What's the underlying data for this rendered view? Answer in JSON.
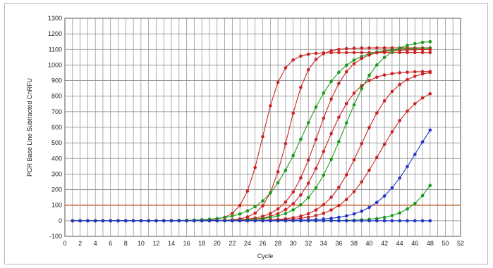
{
  "chart_data": {
    "type": "line",
    "title": "",
    "xlabel": "Cycle",
    "ylabel": "PCR Base Line Subtracted CnRFU",
    "xlim": [
      0,
      52
    ],
    "ylim": [
      -100,
      1300
    ],
    "x_ticks": [
      0,
      2,
      4,
      6,
      8,
      10,
      12,
      14,
      16,
      18,
      20,
      22,
      24,
      26,
      28,
      30,
      32,
      34,
      36,
      38,
      40,
      42,
      44,
      46,
      48,
      50,
      52
    ],
    "x_tick_labels": [
      "0",
      "2",
      "4",
      "6",
      "8",
      "10",
      "12",
      "14",
      "16",
      "18",
      "20",
      "22",
      "24",
      "26",
      "28",
      "30",
      "32",
      "34",
      "36",
      "38",
      "40",
      "42",
      "44",
      "46",
      "48",
      "50",
      "52"
    ],
    "y_ticks": [
      -100,
      0,
      100,
      200,
      300,
      400,
      500,
      600,
      700,
      800,
      900,
      1000,
      1100,
      1200,
      1300
    ],
    "y_tick_labels": [
      "-100",
      "0",
      "100",
      "200",
      "300",
      "400",
      "500",
      "600",
      "700",
      "800",
      "900",
      "1000",
      "1100",
      "1200",
      "1300"
    ],
    "grid": true,
    "legend": "none",
    "threshold": {
      "value": 100,
      "color": "#cc6b3a"
    },
    "cycles": {
      "start": 1,
      "end": 48
    },
    "series": [
      {
        "color": "#cc2222",
        "curve": {
          "plateau": 1080,
          "midpoint": 26.0,
          "slope": 1.3
        }
      },
      {
        "color": "#cc2222",
        "curve": {
          "plateau": 1110,
          "midpoint": 29.3,
          "slope": 1.4
        }
      },
      {
        "color": "#1a9a1a",
        "curve": {
          "plateau": 1110,
          "midpoint": 31.3,
          "slope": 2.6
        }
      },
      {
        "color": "#cc2222",
        "curve": {
          "plateau": 1100,
          "midpoint": 33.2,
          "slope": 2.0
        }
      },
      {
        "color": "#cc2222",
        "curve": {
          "plateau": 960,
          "midpoint": 34.3,
          "slope": 2.1
        }
      },
      {
        "color": "#1a9a1a",
        "curve": {
          "plateau": 1160,
          "midpoint": 36.6,
          "slope": 2.4
        }
      },
      {
        "color": "#cc2222",
        "curve": {
          "plateau": 970,
          "midpoint": 38.9,
          "slope": 2.3
        }
      },
      {
        "color": "#cc2222",
        "curve": {
          "plateau": 880,
          "midpoint": 41.4,
          "slope": 2.6
        }
      },
      {
        "color": "#2233cc",
        "curve": {
          "plateau": 900,
          "midpoint": 46.3,
          "slope": 2.8
        }
      },
      {
        "color": "#1a9a1a",
        "curve": {
          "plateau": 900,
          "midpoint": 50.5,
          "slope": 2.3
        }
      },
      {
        "color": "#1a9a1a",
        "curve": {
          "plateau": 0,
          "midpoint": 30.0,
          "slope": 2.0
        }
      },
      {
        "color": "#2233cc",
        "curve": {
          "plateau": 0,
          "midpoint": 30.0,
          "slope": 2.0
        }
      }
    ]
  }
}
